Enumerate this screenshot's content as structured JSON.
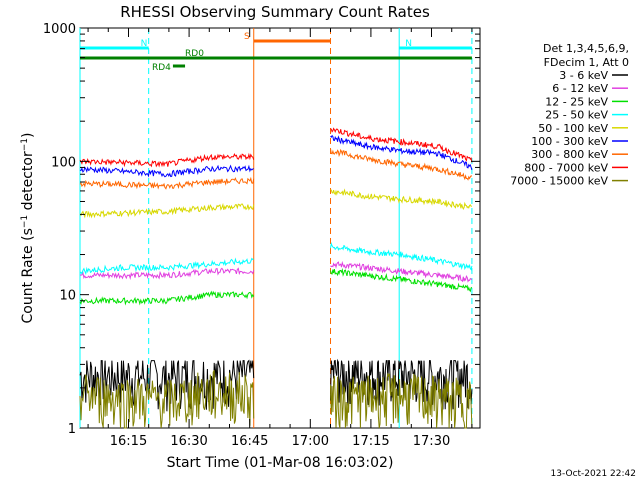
{
  "chart_data": {
    "type": "line",
    "title": "RHESSI Observing Summary Count Rates",
    "xlabel": "Start Time (01-Mar-08 16:03:02)",
    "ylabel": "Count Rate (s",
    "ylabel_sup1": "−1",
    "ylabel_mid": " detector",
    "ylabel_sup2": "−1",
    "ylabel_end": ")",
    "y_scale": "log",
    "ylim": [
      1,
      1000
    ],
    "xlim": [
      "16:03",
      "17:42"
    ],
    "x_ticks": [
      "16:15",
      "16:30",
      "16:45",
      "17:00",
      "17:15",
      "17:30"
    ],
    "y_ticks": [
      "1",
      "10",
      "100",
      "1000"
    ],
    "legend_placement": "right",
    "legend_header": [
      "Det 1,3,4,5,6,9,",
      "FDecim 1, Att 0"
    ],
    "timestamp": "13-Oct-2021 22:42",
    "data_gap": [
      "16:46",
      "17:05"
    ],
    "series": [
      {
        "name": "3 - 6 keV",
        "color": "#000000",
        "values_before": [
          2.5,
          2.5,
          2.4,
          2.5,
          2.5
        ],
        "values_after": [
          2.6,
          2.6,
          2.5,
          2.5,
          2.5
        ]
      },
      {
        "name": "6 - 12 keV",
        "color": "#e040e0",
        "values_before": [
          14,
          14,
          14,
          15,
          15
        ],
        "values_after": [
          17,
          16,
          15,
          14,
          13
        ]
      },
      {
        "name": "12 - 25 keV",
        "color": "#00e000",
        "values_before": [
          9,
          9,
          9,
          10,
          10
        ],
        "values_after": [
          15,
          14,
          13,
          12,
          11
        ]
      },
      {
        "name": "25 - 50 keV",
        "color": "#00ffff",
        "values_before": [
          15,
          16,
          16,
          17,
          18
        ],
        "values_after": [
          23,
          21,
          20,
          18,
          16
        ]
      },
      {
        "name": "50 - 100 keV",
        "color": "#d8d800",
        "values_before": [
          40,
          41,
          42,
          45,
          46
        ],
        "values_after": [
          60,
          55,
          52,
          50,
          45
        ]
      },
      {
        "name": "100 - 300 keV",
        "color": "#0000ff",
        "values_before": [
          88,
          84,
          80,
          88,
          88
        ],
        "values_after": [
          150,
          130,
          120,
          115,
          90
        ]
      },
      {
        "name": "300 - 800 keV",
        "color": "#ff6600",
        "values_before": [
          68,
          67,
          65,
          70,
          72
        ],
        "values_after": [
          120,
          105,
          95,
          88,
          75
        ]
      },
      {
        "name": "800 - 7000 keV",
        "color": "#ff0000",
        "values_before": [
          100,
          98,
          95,
          108,
          108
        ],
        "values_after": [
          175,
          150,
          140,
          130,
          100
        ]
      },
      {
        "name": "7000 - 15000 keV",
        "color": "#808000",
        "values_before": [
          1.8,
          1.7,
          1.6,
          1.9,
          1.8
        ],
        "values_after": [
          1.7,
          1.7,
          1.8,
          1.7,
          1.6
        ]
      }
    ],
    "flags": [
      {
        "name": "N",
        "color": "#00ffff",
        "start": "16:03",
        "end": "16:20"
      },
      {
        "name": "N",
        "color": "#00ffff",
        "start": "17:22",
        "end": "17:40"
      },
      {
        "name": "S",
        "color": "#ff6600",
        "start": "16:46",
        "end": "17:05"
      },
      {
        "name": "RD0",
        "color": "#008000",
        "start": "16:03",
        "end": "17:40"
      },
      {
        "name": "RD4",
        "color": "#008000",
        "start": "16:26",
        "end": "16:29"
      }
    ],
    "vlines": [
      {
        "time": "16:03",
        "color": "#00ffff",
        "style": "solid"
      },
      {
        "time": "16:20",
        "color": "#00ffff",
        "style": "dashed"
      },
      {
        "time": "16:46",
        "color": "#ff6600",
        "style": "solid"
      },
      {
        "time": "17:05",
        "color": "#ff6600",
        "style": "dashed"
      },
      {
        "time": "17:22",
        "color": "#00ffff",
        "style": "solid"
      },
      {
        "time": "17:40",
        "color": "#00ffff",
        "style": "dashed"
      }
    ]
  }
}
